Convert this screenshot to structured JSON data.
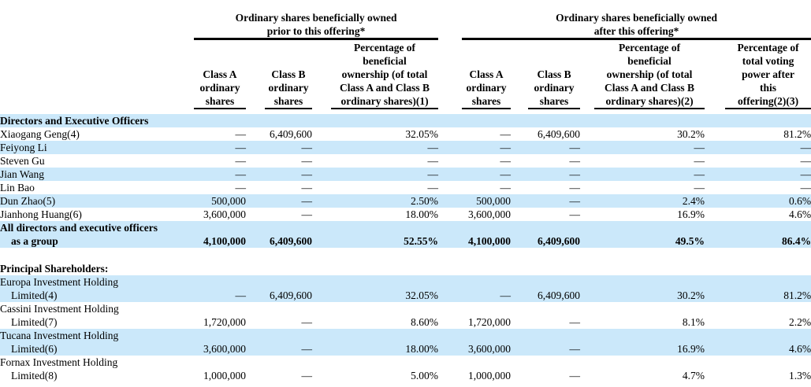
{
  "colors": {
    "row_highlight": "#cbe8fa",
    "text": "#000000",
    "rule": "#000000"
  },
  "table": {
    "groups": [
      {
        "title": "Ordinary shares beneficially owned\nprior to this offering*"
      },
      {
        "title": "Ordinary shares beneficially owned\nafter this offering*"
      }
    ],
    "columns": [
      {
        "label": "Class A\nordinary\nshares"
      },
      {
        "label": "Class B\nordinary\nshares"
      },
      {
        "label": "Percentage of\nbeneficial\nownership (of total\nClass A and Class B\nordinary shares)(1)"
      },
      {
        "label": "Class A\nordinary\nshares"
      },
      {
        "label": "Class B\nordinary\nshares"
      },
      {
        "label": "Percentage of\nbeneficial\nownership (of total\nClass A and Class B\nordinary shares)(2)"
      },
      {
        "label": "Percentage of\ntotal voting\npower after\nthis\noffering(2)(3)"
      }
    ],
    "rows": [
      {
        "type": "section",
        "shade": true,
        "bold": true,
        "name_lines": [
          "Directors and Executive Officers"
        ]
      },
      {
        "type": "data",
        "shade": false,
        "bold": false,
        "name_lines": [
          "Xiaogang Geng(4)"
        ],
        "values": [
          "—",
          "6,409,600",
          "32.05%",
          "—",
          "6,409,600",
          "30.2%",
          "81.2%"
        ]
      },
      {
        "type": "data",
        "shade": true,
        "bold": false,
        "name_lines": [
          "Feiyong Li"
        ],
        "values": [
          "—",
          "—",
          "—",
          "—",
          "—",
          "—",
          "—"
        ]
      },
      {
        "type": "data",
        "shade": false,
        "bold": false,
        "name_lines": [
          "Steven Gu"
        ],
        "values": [
          "—",
          "—",
          "—",
          "—",
          "—",
          "—",
          "—"
        ]
      },
      {
        "type": "data",
        "shade": true,
        "bold": false,
        "name_lines": [
          "Jian Wang"
        ],
        "values": [
          "—",
          "—",
          "—",
          "—",
          "—",
          "—",
          "—"
        ]
      },
      {
        "type": "data",
        "shade": false,
        "bold": false,
        "name_lines": [
          "Lin Bao"
        ],
        "values": [
          "—",
          "—",
          "—",
          "—",
          "—",
          "—",
          "—"
        ]
      },
      {
        "type": "data",
        "shade": true,
        "bold": false,
        "name_lines": [
          "Dun Zhao(5)"
        ],
        "values": [
          "500,000",
          "—",
          "2.50%",
          "500,000",
          "—",
          "2.4%",
          "0.6%"
        ]
      },
      {
        "type": "data",
        "shade": false,
        "bold": false,
        "name_lines": [
          "Jianhong Huang(6)"
        ],
        "values": [
          "3,600,000",
          "—",
          "18.00%",
          "3,600,000",
          "—",
          "16.9%",
          "4.6%"
        ]
      },
      {
        "type": "data",
        "shade": true,
        "bold": true,
        "name_lines": [
          "All directors and executive officers",
          "as a group"
        ],
        "values": [
          "4,100,000",
          "6,409,600",
          "52.55%",
          "4,100,000",
          "6,409,600",
          "49.5%",
          "86.4%"
        ]
      },
      {
        "type": "blank"
      },
      {
        "type": "section",
        "shade": false,
        "bold": true,
        "name_lines": [
          "Principal Shareholders:"
        ]
      },
      {
        "type": "data",
        "shade": true,
        "bold": false,
        "name_lines": [
          "Europa Investment Holding",
          "Limited(4)"
        ],
        "values": [
          "—",
          "6,409,600",
          "32.05%",
          "—",
          "6,409,600",
          "30.2%",
          "81.2%"
        ]
      },
      {
        "type": "data",
        "shade": false,
        "bold": false,
        "name_lines": [
          "Cassini Investment Holding",
          "Limited(7)"
        ],
        "values": [
          "1,720,000",
          "—",
          "8.60%",
          "1,720,000",
          "—",
          "8.1%",
          "2.2%"
        ]
      },
      {
        "type": "data",
        "shade": true,
        "bold": false,
        "name_lines": [
          "Tucana Investment Holding",
          "Limited(6)"
        ],
        "values": [
          "3,600,000",
          "—",
          "18.00%",
          "3,600,000",
          "—",
          "16.9%",
          "4.6%"
        ]
      },
      {
        "type": "data",
        "shade": false,
        "bold": false,
        "name_lines": [
          "Fornax Investment Holding",
          "Limited(8)"
        ],
        "values": [
          "1,000,000",
          "—",
          "5.00%",
          "1,000,000",
          "—",
          "4.7%",
          "1.3%"
        ]
      }
    ]
  }
}
